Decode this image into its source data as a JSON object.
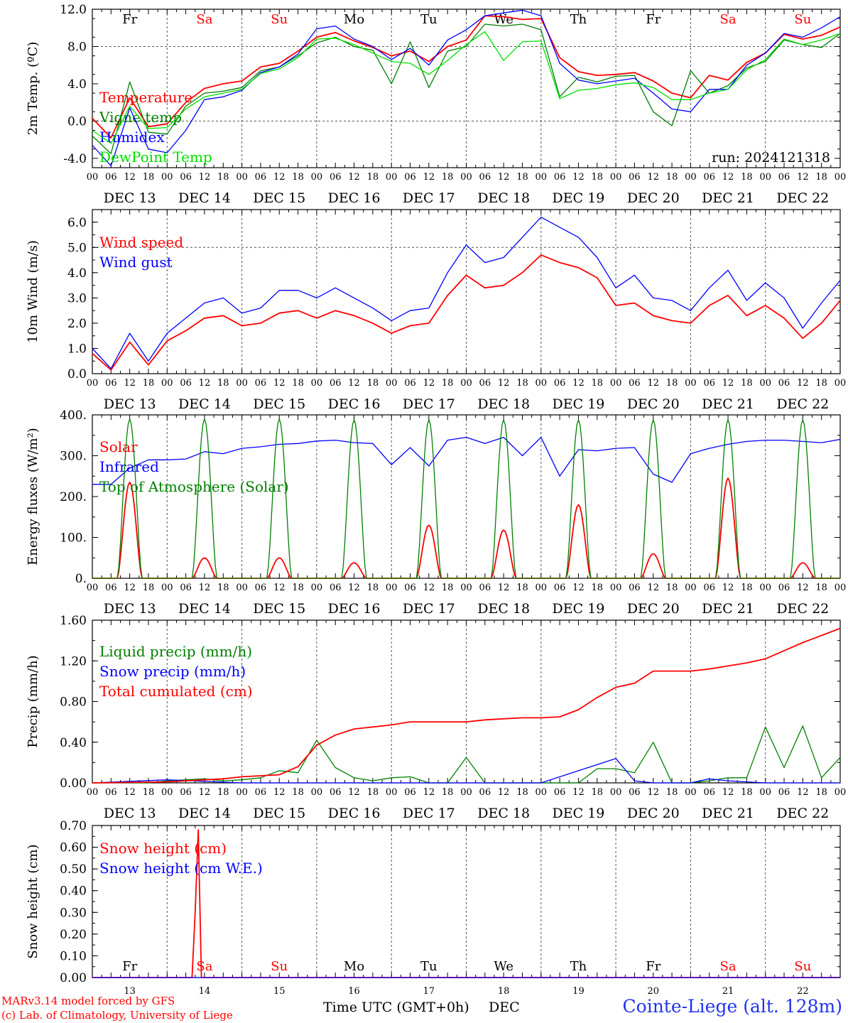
{
  "colors": {
    "red": "#ff0000",
    "green": "#008000",
    "blue": "#0000ff",
    "lime": "#00e000",
    "darkgreen": "#228b22"
  },
  "hour_labels": [
    "00",
    "06",
    "12",
    "18"
  ],
  "date_labels": [
    "DEC 13",
    "DEC 14",
    "DEC 15",
    "DEC 16",
    "DEC 17",
    "DEC 18",
    "DEC 19",
    "DEC 20",
    "DEC 21",
    "DEC 22"
  ],
  "weekdays": [
    {
      "label": "Fr",
      "weekend": false
    },
    {
      "label": "Sa",
      "weekend": true
    },
    {
      "label": "Su",
      "weekend": true
    },
    {
      "label": "Mo",
      "weekend": false
    },
    {
      "label": "Tu",
      "weekend": false
    },
    {
      "label": "We",
      "weekend": false
    },
    {
      "label": "Th",
      "weekend": false
    },
    {
      "label": "Fr",
      "weekend": false
    },
    {
      "label": "Sa",
      "weekend": true
    },
    {
      "label": "Su",
      "weekend": true
    }
  ],
  "day_numbers": [
    "13",
    "14",
    "15",
    "16",
    "17",
    "18",
    "19",
    "20",
    "21",
    "22"
  ],
  "footer": {
    "model": "MARv3.14 model forced by GFS",
    "copyright": "(c) Lab. of Climatology, University of Liege",
    "axis_title": "Time UTC (GMT+0h)",
    "month": "DEC",
    "station": "Cointe-Liege (alt. 128m)"
  },
  "chart_data": [
    {
      "type": "line",
      "ylabel": "2m Temp. (ºC)",
      "ylim": [
        -5.0,
        12.0
      ],
      "yticks": [
        "-4.0",
        "0.0",
        "4.0",
        "8.0",
        "12.0"
      ],
      "dashed_y": [
        0,
        8
      ],
      "annotation": "run: 2024121318",
      "x_unit": "hours since Dec 13 00 UTC",
      "series": [
        {
          "name": "Temperature",
          "color": "red",
          "x": [
            0,
            6,
            12,
            18,
            24,
            30,
            36,
            42,
            48,
            54,
            60,
            66,
            72,
            78,
            84,
            90,
            96,
            102,
            108,
            114,
            120,
            126,
            132,
            138,
            144,
            150,
            156,
            162,
            168,
            174,
            180,
            186,
            192,
            198,
            204,
            210,
            216,
            222,
            228,
            234,
            240
          ],
          "values": [
            0.3,
            -1.8,
            2.5,
            -0.6,
            -0.3,
            2.0,
            3.5,
            4.0,
            4.3,
            5.8,
            6.2,
            7.5,
            9.0,
            9.5,
            8.6,
            7.9,
            7.0,
            7.5,
            6.4,
            8.0,
            8.7,
            11.3,
            11.2,
            10.9,
            11.0,
            6.8,
            5.3,
            4.9,
            5.0,
            5.2,
            4.3,
            3.0,
            2.5,
            4.9,
            4.4,
            6.3,
            7.3,
            9.3,
            8.8,
            9.2,
            10.1
          ]
        },
        {
          "name": "Vigne temp",
          "color": "green",
          "x": [
            0,
            6,
            12,
            18,
            24,
            30,
            36,
            42,
            48,
            54,
            60,
            66,
            72,
            78,
            84,
            90,
            96,
            102,
            108,
            114,
            120,
            126,
            132,
            138,
            144,
            150,
            156,
            162,
            168,
            174,
            180,
            186,
            192,
            198,
            204,
            210,
            216,
            222,
            228,
            234,
            240
          ],
          "values": [
            -1.6,
            -3.5,
            4.2,
            -1.2,
            -1.4,
            1.6,
            3.0,
            3.2,
            3.6,
            5.4,
            5.8,
            7.0,
            8.4,
            9.0,
            8.0,
            7.6,
            4.0,
            8.5,
            3.6,
            7.5,
            8.0,
            10.4,
            10.2,
            10.4,
            9.8,
            2.6,
            4.7,
            4.2,
            4.8,
            4.9,
            1.0,
            -0.5,
            5.4,
            3.0,
            3.8,
            5.7,
            6.4,
            8.7,
            8.2,
            7.9,
            9.4
          ]
        },
        {
          "name": "Humidex",
          "color": "blue",
          "x": [
            0,
            6,
            12,
            18,
            24,
            30,
            36,
            42,
            48,
            54,
            60,
            66,
            72,
            78,
            84,
            90,
            96,
            102,
            108,
            114,
            120,
            126,
            132,
            138,
            144,
            150,
            156,
            162,
            168,
            174,
            180,
            186,
            192,
            198,
            204,
            210,
            216,
            222,
            228,
            234,
            240
          ],
          "values": [
            -2.6,
            -4.8,
            1.4,
            -3.0,
            -3.4,
            -1.0,
            2.3,
            2.6,
            3.3,
            5.2,
            5.8,
            7.2,
            9.9,
            10.2,
            8.8,
            8.0,
            6.6,
            7.8,
            6.0,
            8.7,
            9.8,
            11.3,
            11.6,
            11.9,
            11.3,
            6.2,
            4.4,
            4.0,
            4.3,
            4.6,
            3.0,
            1.3,
            1.0,
            3.4,
            3.4,
            6.0,
            7.3,
            9.4,
            9.0,
            10.0,
            11.2
          ]
        },
        {
          "name": "DewPoint Temp",
          "color": "lime",
          "x": [
            0,
            6,
            12,
            18,
            24,
            30,
            36,
            42,
            48,
            54,
            60,
            66,
            72,
            78,
            84,
            90,
            96,
            102,
            108,
            114,
            120,
            126,
            132,
            138,
            144,
            150,
            156,
            162,
            168,
            174,
            180,
            186,
            192,
            198,
            204,
            210,
            216,
            222,
            228,
            234,
            240
          ],
          "values": [
            -1.0,
            -2.4,
            1.6,
            -0.8,
            -0.7,
            1.3,
            2.6,
            3.0,
            3.4,
            5.1,
            5.6,
            6.8,
            8.8,
            8.9,
            8.2,
            7.3,
            6.4,
            6.2,
            5.0,
            6.5,
            8.2,
            9.6,
            6.5,
            8.5,
            8.6,
            2.4,
            3.3,
            3.5,
            3.9,
            4.1,
            3.6,
            2.3,
            2.3,
            3.0,
            3.4,
            5.5,
            6.6,
            8.8,
            8.2,
            8.7,
            9.4
          ]
        }
      ]
    },
    {
      "type": "line",
      "ylabel": "10m Wind (m/s)",
      "ylim": [
        0.0,
        6.5
      ],
      "yticks": [
        "0.0",
        "1.0",
        "2.0",
        "3.0",
        "4.0",
        "5.0",
        "6.0"
      ],
      "dashed_y": [
        5
      ],
      "series": [
        {
          "name": "Wind speed",
          "color": "red",
          "x": [
            0,
            6,
            12,
            18,
            24,
            30,
            36,
            42,
            48,
            54,
            60,
            66,
            72,
            78,
            84,
            90,
            96,
            102,
            108,
            114,
            120,
            126,
            132,
            138,
            144,
            150,
            156,
            162,
            168,
            174,
            180,
            186,
            192,
            198,
            204,
            210,
            216,
            222,
            228,
            234,
            240
          ],
          "values": [
            0.8,
            0.15,
            1.25,
            0.35,
            1.3,
            1.7,
            2.2,
            2.3,
            1.9,
            2.0,
            2.4,
            2.5,
            2.2,
            2.5,
            2.3,
            2.0,
            1.6,
            1.9,
            2.0,
            3.1,
            3.9,
            3.4,
            3.5,
            4.0,
            4.7,
            4.4,
            4.2,
            3.8,
            2.7,
            2.8,
            2.3,
            2.1,
            2.0,
            2.7,
            3.1,
            2.3,
            2.7,
            2.2,
            1.4,
            2.0,
            2.9
          ]
        },
        {
          "name": "Wind gust",
          "color": "blue",
          "x": [
            0,
            6,
            12,
            18,
            24,
            30,
            36,
            42,
            48,
            54,
            60,
            66,
            72,
            78,
            84,
            90,
            96,
            102,
            108,
            114,
            120,
            126,
            132,
            138,
            144,
            150,
            156,
            162,
            168,
            174,
            180,
            186,
            192,
            198,
            204,
            210,
            216,
            222,
            228,
            234,
            240
          ],
          "values": [
            1.0,
            0.2,
            1.6,
            0.5,
            1.6,
            2.2,
            2.8,
            3.0,
            2.4,
            2.6,
            3.3,
            3.3,
            3.0,
            3.4,
            3.0,
            2.6,
            2.1,
            2.5,
            2.6,
            4.0,
            5.1,
            4.4,
            4.6,
            5.4,
            6.2,
            5.8,
            5.4,
            4.6,
            3.4,
            3.9,
            3.0,
            2.9,
            2.5,
            3.4,
            4.1,
            2.9,
            3.6,
            3.0,
            1.8,
            2.8,
            3.7
          ]
        }
      ]
    },
    {
      "type": "line",
      "ylabel": "Energy fluxes (W/m²)",
      "ylim": [
        0,
        400
      ],
      "yticks": [
        "0.",
        "100.",
        "200.",
        "300.",
        "400."
      ],
      "dashed_y": [],
      "series": [
        {
          "name": "Solar",
          "color": "red",
          "day_peaks": [
            235,
            50,
            50,
            38,
            130,
            118,
            180,
            60,
            245,
            38
          ]
        },
        {
          "name": "Infrared",
          "color": "blue",
          "x": [
            0,
            6,
            12,
            18,
            24,
            30,
            36,
            42,
            48,
            54,
            60,
            66,
            72,
            78,
            84,
            90,
            96,
            102,
            108,
            114,
            120,
            126,
            132,
            138,
            144,
            150,
            156,
            162,
            168,
            174,
            180,
            186,
            192,
            198,
            204,
            210,
            216,
            222,
            228,
            234,
            240
          ],
          "values": [
            230,
            230,
            270,
            290,
            290,
            292,
            310,
            305,
            318,
            322,
            328,
            330,
            336,
            338,
            332,
            330,
            278,
            320,
            275,
            338,
            345,
            330,
            345,
            300,
            345,
            250,
            315,
            312,
            318,
            320,
            255,
            235,
            305,
            318,
            328,
            335,
            338,
            338,
            335,
            332,
            340
          ]
        },
        {
          "name": "Top of Atmosphere (Solar)",
          "color": "green",
          "day_peaks": [
            390,
            390,
            390,
            388,
            388,
            388,
            388,
            388,
            388,
            388
          ]
        }
      ]
    },
    {
      "type": "line",
      "ylabel": "Precip (mm/h)",
      "ylim": [
        0.0,
        1.6
      ],
      "yticks": [
        "0.00",
        "0.40",
        "0.80",
        "1.20",
        "1.60"
      ],
      "dashed_y": [],
      "series": [
        {
          "name": "Liquid precip (mm/h)",
          "color": "green",
          "x": [
            0,
            6,
            12,
            18,
            24,
            30,
            36,
            42,
            48,
            54,
            60,
            66,
            72,
            78,
            84,
            90,
            96,
            102,
            108,
            114,
            120,
            126,
            132,
            138,
            144,
            150,
            156,
            162,
            168,
            174,
            180,
            186,
            192,
            198,
            204,
            210,
            216,
            222,
            228,
            234,
            240
          ],
          "values": [
            0,
            0,
            0,
            0,
            0.02,
            0.03,
            0.04,
            0.02,
            0.03,
            0.05,
            0.12,
            0.1,
            0.42,
            0.15,
            0.05,
            0.02,
            0.05,
            0.06,
            0,
            0,
            0.25,
            0,
            0,
            0,
            0,
            0,
            0,
            0.14,
            0.14,
            0.1,
            0.4,
            0,
            0,
            0.02,
            0.05,
            0.05,
            0.55,
            0.15,
            0.56,
            0.05,
            0.25
          ]
        },
        {
          "name": "Snow precip (mm/h)",
          "color": "blue",
          "x": [
            0,
            24,
            48,
            72,
            96,
            120,
            144,
            168,
            174,
            180,
            192,
            198,
            204,
            216,
            240
          ],
          "values": [
            0,
            0.03,
            0,
            0,
            0,
            0,
            0,
            0.24,
            0.02,
            0,
            0,
            0.04,
            0.02,
            0,
            0
          ]
        },
        {
          "name": "Total cumulated (cm)",
          "color": "red",
          "x": [
            0,
            24,
            30,
            36,
            42,
            48,
            54,
            60,
            66,
            72,
            78,
            84,
            90,
            96,
            102,
            108,
            114,
            120,
            126,
            132,
            138,
            144,
            150,
            156,
            162,
            168,
            174,
            180,
            186,
            192,
            198,
            204,
            210,
            216,
            222,
            228,
            234,
            240
          ],
          "values": [
            0,
            0.01,
            0.02,
            0.03,
            0.04,
            0.06,
            0.07,
            0.08,
            0.16,
            0.37,
            0.47,
            0.53,
            0.55,
            0.57,
            0.6,
            0.6,
            0.6,
            0.6,
            0.62,
            0.63,
            0.64,
            0.64,
            0.65,
            0.72,
            0.84,
            0.94,
            0.98,
            1.1,
            1.1,
            1.1,
            1.12,
            1.15,
            1.18,
            1.22,
            1.3,
            1.38,
            1.45,
            1.52
          ]
        }
      ]
    },
    {
      "type": "line",
      "ylabel": "Snow height (cm)",
      "ylim": [
        0.0,
        0.7
      ],
      "yticks": [
        "0.00",
        "0.10",
        "0.20",
        "0.30",
        "0.40",
        "0.50",
        "0.60",
        "0.70"
      ],
      "dashed_y": [],
      "series": [
        {
          "name": "Snow height (cm)",
          "color": "red",
          "x": [
            0,
            32,
            33,
            34,
            35,
            240
          ],
          "values": [
            0,
            0,
            0.3,
            0.68,
            0,
            0
          ]
        },
        {
          "name": "Snow height (cm W.E.)",
          "color": "blue",
          "x": [
            0,
            240
          ],
          "values": [
            0,
            0
          ]
        }
      ]
    }
  ]
}
